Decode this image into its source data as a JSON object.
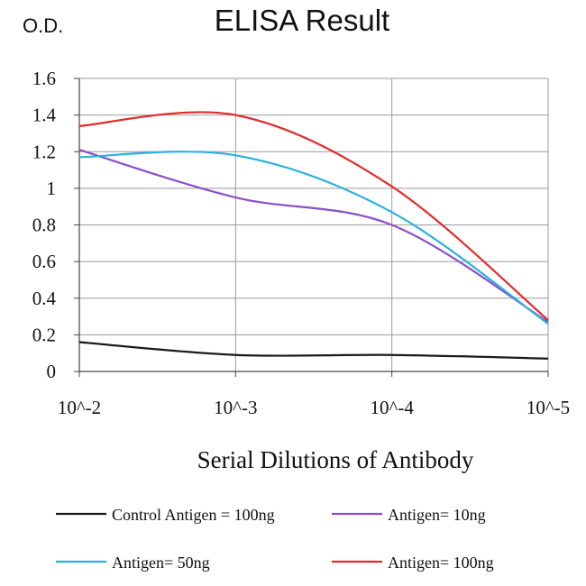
{
  "chart_data": {
    "type": "line",
    "title": "ELISA Result",
    "ylabel": "O.D.",
    "xlabel": "Serial Dilutions of Antibody",
    "categories": [
      "10^-2",
      "10^-3",
      "10^-4",
      "10^-5"
    ],
    "ylim": [
      0,
      1.6
    ],
    "yticks": [
      "0",
      "0.2",
      "0.4",
      "0.6",
      "0.8",
      "1",
      "1.2",
      "1.4",
      "1.6"
    ],
    "grid": true,
    "legend_position": "bottom",
    "series": [
      {
        "name": "Control Antigen = 100ng",
        "color": "#1a1a1a",
        "values": [
          0.16,
          0.09,
          0.09,
          0.07
        ]
      },
      {
        "name": "Antigen= 10ng",
        "color": "#8a4fc8",
        "values": [
          1.21,
          0.95,
          0.8,
          0.27
        ]
      },
      {
        "name": "Antigen= 50ng",
        "color": "#2ab0e0",
        "values": [
          1.17,
          1.18,
          0.87,
          0.26
        ]
      },
      {
        "name": "Antigen= 100ng",
        "color": "#e52a2a",
        "values": [
          1.34,
          1.4,
          1.01,
          0.28
        ]
      }
    ]
  }
}
